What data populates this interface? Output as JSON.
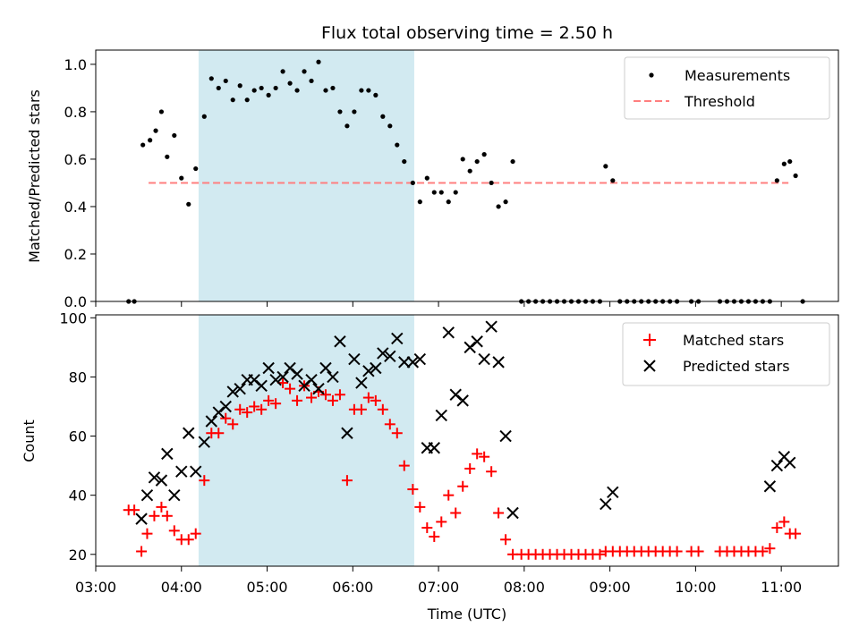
{
  "chart_data": [
    {
      "type": "scatter",
      "title": "Flux total observing time = 2.50 h",
      "ylabel": "Matched/Predicted stars",
      "xlim": [
        "03:00",
        "11:40"
      ],
      "ylim": [
        0,
        1.06
      ],
      "y_ticks": [
        "0.0",
        "0.2",
        "0.4",
        "0.6",
        "0.8",
        "1.0"
      ],
      "legend_position": "top-right",
      "highlight_span": {
        "start": "04:12",
        "end": "06:43",
        "color": "#add8e6"
      },
      "threshold": {
        "name": "Threshold",
        "value": 0.5,
        "x_start": "03:37",
        "x_end": "11:05",
        "color": "#ff7f7f",
        "style": "dashed"
      },
      "series": [
        {
          "name": "Measurements",
          "color": "#000000",
          "marker": "dot",
          "points": [
            [
              "03:23",
              0
            ],
            [
              "03:27",
              0
            ],
            [
              "03:33",
              0.66
            ],
            [
              "03:38",
              0.68
            ],
            [
              "03:42",
              0.72
            ],
            [
              "03:46",
              0.8
            ],
            [
              "03:50",
              0.61
            ],
            [
              "03:55",
              0.7
            ],
            [
              "04:00",
              0.52
            ],
            [
              "04:05",
              0.41
            ],
            [
              "04:10",
              0.56
            ],
            [
              "04:16",
              0.78
            ],
            [
              "04:21",
              0.94
            ],
            [
              "04:26",
              0.9
            ],
            [
              "04:31",
              0.93
            ],
            [
              "04:36",
              0.85
            ],
            [
              "04:41",
              0.91
            ],
            [
              "04:46",
              0.85
            ],
            [
              "04:51",
              0.89
            ],
            [
              "04:56",
              0.9
            ],
            [
              "05:01",
              0.87
            ],
            [
              "05:06",
              0.9
            ],
            [
              "05:11",
              0.97
            ],
            [
              "05:16",
              0.92
            ],
            [
              "05:21",
              0.89
            ],
            [
              "05:26",
              0.97
            ],
            [
              "05:31",
              0.93
            ],
            [
              "05:36",
              1.01
            ],
            [
              "05:41",
              0.89
            ],
            [
              "05:46",
              0.9
            ],
            [
              "05:51",
              0.8
            ],
            [
              "05:56",
              0.74
            ],
            [
              "06:01",
              0.8
            ],
            [
              "06:06",
              0.89
            ],
            [
              "06:11",
              0.89
            ],
            [
              "06:16",
              0.87
            ],
            [
              "06:21",
              0.78
            ],
            [
              "06:26",
              0.74
            ],
            [
              "06:31",
              0.66
            ],
            [
              "06:36",
              0.59
            ],
            [
              "06:42",
              0.5
            ],
            [
              "06:47",
              0.42
            ],
            [
              "06:52",
              0.52
            ],
            [
              "06:57",
              0.46
            ],
            [
              "07:02",
              0.46
            ],
            [
              "07:07",
              0.42
            ],
            [
              "07:12",
              0.46
            ],
            [
              "07:17",
              0.6
            ],
            [
              "07:22",
              0.55
            ],
            [
              "07:27",
              0.59
            ],
            [
              "07:32",
              0.62
            ],
            [
              "07:37",
              0.5
            ],
            [
              "07:42",
              0.4
            ],
            [
              "07:47",
              0.42
            ],
            [
              "07:52",
              0.59
            ],
            [
              "07:58",
              0
            ],
            [
              "08:03",
              0
            ],
            [
              "08:08",
              0
            ],
            [
              "08:13",
              0
            ],
            [
              "08:18",
              0
            ],
            [
              "08:23",
              0
            ],
            [
              "08:28",
              0
            ],
            [
              "08:33",
              0
            ],
            [
              "08:38",
              0
            ],
            [
              "08:43",
              0
            ],
            [
              "08:48",
              0
            ],
            [
              "08:53",
              0
            ],
            [
              "08:57",
              0.57
            ],
            [
              "09:02",
              0.51
            ],
            [
              "09:07",
              0
            ],
            [
              "09:12",
              0
            ],
            [
              "09:17",
              0
            ],
            [
              "09:22",
              0
            ],
            [
              "09:27",
              0
            ],
            [
              "09:32",
              0
            ],
            [
              "09:37",
              0
            ],
            [
              "09:42",
              0
            ],
            [
              "09:47",
              0
            ],
            [
              "09:57",
              0
            ],
            [
              "10:02",
              0
            ],
            [
              "10:17",
              0
            ],
            [
              "10:22",
              0
            ],
            [
              "10:27",
              0
            ],
            [
              "10:32",
              0
            ],
            [
              "10:37",
              0
            ],
            [
              "10:42",
              0
            ],
            [
              "10:47",
              0
            ],
            [
              "10:52",
              0
            ],
            [
              "10:57",
              0.51
            ],
            [
              "11:02",
              0.58
            ],
            [
              "11:06",
              0.59
            ],
            [
              "11:10",
              0.53
            ],
            [
              "11:15",
              0
            ]
          ]
        }
      ]
    },
    {
      "type": "scatter",
      "xlabel": "Time (UTC)",
      "ylabel": "Count",
      "xlim": [
        "03:00",
        "11:40"
      ],
      "ylim": [
        16,
        101
      ],
      "x_ticks": [
        "03:00",
        "04:00",
        "05:00",
        "06:00",
        "07:00",
        "08:00",
        "09:00",
        "10:00",
        "11:00"
      ],
      "y_ticks": [
        "20",
        "40",
        "60",
        "80",
        "100"
      ],
      "legend_position": "top-right",
      "highlight_span": {
        "start": "04:12",
        "end": "06:43",
        "color": "#add8e6"
      },
      "series": [
        {
          "name": "Matched stars",
          "color": "#ff0000",
          "marker": "plus",
          "points": [
            [
              "03:23",
              35
            ],
            [
              "03:27",
              35
            ],
            [
              "03:32",
              21
            ],
            [
              "03:36",
              27
            ],
            [
              "03:41",
              33
            ],
            [
              "03:46",
              36
            ],
            [
              "03:50",
              33
            ],
            [
              "03:55",
              28
            ],
            [
              "04:00",
              25
            ],
            [
              "04:05",
              25
            ],
            [
              "04:10",
              27
            ],
            [
              "04:16",
              45
            ],
            [
              "04:21",
              61
            ],
            [
              "04:26",
              61
            ],
            [
              "04:31",
              66
            ],
            [
              "04:36",
              64
            ],
            [
              "04:41",
              69
            ],
            [
              "04:46",
              68
            ],
            [
              "04:51",
              70
            ],
            [
              "04:56",
              69
            ],
            [
              "05:01",
              72
            ],
            [
              "05:06",
              71
            ],
            [
              "05:11",
              78
            ],
            [
              "05:16",
              76
            ],
            [
              "05:21",
              72
            ],
            [
              "05:26",
              77
            ],
            [
              "05:31",
              73
            ],
            [
              "05:36",
              75
            ],
            [
              "05:41",
              74
            ],
            [
              "05:46",
              72
            ],
            [
              "05:51",
              74
            ],
            [
              "05:56",
              45
            ],
            [
              "06:01",
              69
            ],
            [
              "06:06",
              69
            ],
            [
              "06:11",
              73
            ],
            [
              "06:16",
              72
            ],
            [
              "06:21",
              69
            ],
            [
              "06:26",
              64
            ],
            [
              "06:31",
              61
            ],
            [
              "06:36",
              50
            ],
            [
              "06:42",
              42
            ],
            [
              "06:47",
              36
            ],
            [
              "06:52",
              29
            ],
            [
              "06:57",
              26
            ],
            [
              "07:02",
              31
            ],
            [
              "07:07",
              40
            ],
            [
              "07:12",
              34
            ],
            [
              "07:17",
              43
            ],
            [
              "07:22",
              49
            ],
            [
              "07:27",
              54
            ],
            [
              "07:32",
              53
            ],
            [
              "07:37",
              48
            ],
            [
              "07:42",
              34
            ],
            [
              "07:47",
              25
            ],
            [
              "07:52",
              20
            ],
            [
              "07:58",
              20
            ],
            [
              "08:03",
              20
            ],
            [
              "08:08",
              20
            ],
            [
              "08:13",
              20
            ],
            [
              "08:18",
              20
            ],
            [
              "08:23",
              20
            ],
            [
              "08:28",
              20
            ],
            [
              "08:33",
              20
            ],
            [
              "08:38",
              20
            ],
            [
              "08:43",
              20
            ],
            [
              "08:48",
              20
            ],
            [
              "08:53",
              20
            ],
            [
              "08:57",
              21
            ],
            [
              "09:02",
              21
            ],
            [
              "09:07",
              21
            ],
            [
              "09:12",
              21
            ],
            [
              "09:17",
              21
            ],
            [
              "09:22",
              21
            ],
            [
              "09:27",
              21
            ],
            [
              "09:32",
              21
            ],
            [
              "09:37",
              21
            ],
            [
              "09:42",
              21
            ],
            [
              "09:47",
              21
            ],
            [
              "09:57",
              21
            ],
            [
              "10:02",
              21
            ],
            [
              "10:17",
              21
            ],
            [
              "10:22",
              21
            ],
            [
              "10:27",
              21
            ],
            [
              "10:32",
              21
            ],
            [
              "10:37",
              21
            ],
            [
              "10:42",
              21
            ],
            [
              "10:47",
              21
            ],
            [
              "10:52",
              22
            ],
            [
              "10:57",
              29
            ],
            [
              "11:02",
              31
            ],
            [
              "11:06",
              27
            ],
            [
              "11:10",
              27
            ]
          ]
        },
        {
          "name": "Predicted stars",
          "color": "#000000",
          "marker": "x",
          "points": [
            [
              "03:32",
              32
            ],
            [
              "03:36",
              40
            ],
            [
              "03:41",
              46
            ],
            [
              "03:46",
              45
            ],
            [
              "03:50",
              54
            ],
            [
              "03:55",
              40
            ],
            [
              "04:00",
              48
            ],
            [
              "04:05",
              61
            ],
            [
              "04:10",
              48
            ],
            [
              "04:16",
              58
            ],
            [
              "04:21",
              65
            ],
            [
              "04:26",
              68
            ],
            [
              "04:31",
              70
            ],
            [
              "04:36",
              75
            ],
            [
              "04:41",
              76
            ],
            [
              "04:46",
              79
            ],
            [
              "04:51",
              79
            ],
            [
              "04:56",
              77
            ],
            [
              "05:01",
              83
            ],
            [
              "05:06",
              79
            ],
            [
              "05:11",
              80
            ],
            [
              "05:16",
              83
            ],
            [
              "05:21",
              81
            ],
            [
              "05:26",
              77
            ],
            [
              "05:31",
              79
            ],
            [
              "05:36",
              76
            ],
            [
              "05:41",
              83
            ],
            [
              "05:46",
              80
            ],
            [
              "05:51",
              92
            ],
            [
              "05:56",
              61
            ],
            [
              "06:01",
              86
            ],
            [
              "06:06",
              78
            ],
            [
              "06:11",
              82
            ],
            [
              "06:16",
              83
            ],
            [
              "06:21",
              88
            ],
            [
              "06:26",
              87
            ],
            [
              "06:31",
              93
            ],
            [
              "06:36",
              85
            ],
            [
              "06:42",
              85
            ],
            [
              "06:47",
              86
            ],
            [
              "06:52",
              56
            ],
            [
              "06:57",
              56
            ],
            [
              "07:02",
              67
            ],
            [
              "07:07",
              95
            ],
            [
              "07:12",
              74
            ],
            [
              "07:17",
              72
            ],
            [
              "07:22",
              90
            ],
            [
              "07:27",
              92
            ],
            [
              "07:32",
              86
            ],
            [
              "07:37",
              97
            ],
            [
              "07:42",
              85
            ],
            [
              "07:47",
              60
            ],
            [
              "07:52",
              34
            ],
            [
              "08:57",
              37
            ],
            [
              "09:02",
              41
            ],
            [
              "10:52",
              43
            ],
            [
              "10:57",
              50
            ],
            [
              "11:02",
              53
            ],
            [
              "11:06",
              51
            ]
          ]
        }
      ]
    }
  ]
}
